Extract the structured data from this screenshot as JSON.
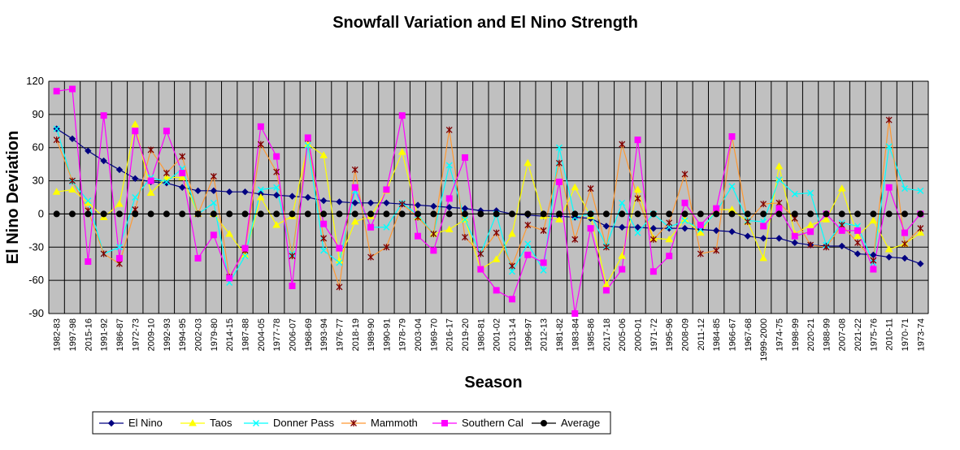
{
  "chart_data": {
    "type": "line",
    "title": "Snowfall Variation and El Nino Strength",
    "xlabel": "Season",
    "ylabel": "El Nino Deviation",
    "ylim": [
      -90,
      120
    ],
    "yticks": [
      -90,
      -60,
      -30,
      0,
      30,
      60,
      90,
      120
    ],
    "grid": true,
    "legend_position": "bottom-left",
    "plot_background": "#c0c0c0",
    "categories": [
      "1982-83",
      "1997-98",
      "2015-16",
      "1991-92",
      "1986-87",
      "1972-73",
      "2009-10",
      "1992-93",
      "1994-95",
      "2002-03",
      "1979-80",
      "2014-15",
      "1987-88",
      "2004-05",
      "1977-78",
      "2006-07",
      "1968-69",
      "1993-94",
      "1976-77",
      "2018-19",
      "1989-90",
      "1990-91",
      "1978-79",
      "2003-04",
      "1969-70",
      "2016-17",
      "2019-20",
      "1980-81",
      "2001-02",
      "2013-14",
      "1996-97",
      "2012-13",
      "1981-82",
      "1983-84",
      "1985-86",
      "2017-18",
      "2005-06",
      "2000-01",
      "1971-72",
      "1995-96",
      "2008-09",
      "2011-12",
      "1984-85",
      "1966-67",
      "1967-68",
      "1999-2000",
      "1974-75",
      "1998-99",
      "2020-21",
      "1988-99",
      "2007-08",
      "2021-22",
      "1975-76",
      "2010-11",
      "1970-71",
      "1973-74"
    ],
    "series": [
      {
        "name": "El Nino",
        "color": "#000080",
        "marker": "diamond",
        "values": [
          77,
          68,
          57,
          48,
          40,
          32,
          29,
          28,
          24,
          21,
          21,
          20,
          20,
          18,
          17,
          16,
          15,
          12,
          11,
          10,
          10,
          10,
          9,
          8,
          7,
          6,
          5,
          3,
          3,
          0,
          -1,
          -2,
          -2,
          -3,
          -4,
          -11,
          -12,
          -12,
          -13,
          -13,
          -13,
          -14,
          -15,
          -16,
          -20,
          -22,
          -22,
          -26,
          -28,
          -29,
          -29,
          -36,
          -37,
          -39,
          -40,
          -45
        ]
      },
      {
        "name": "Taos",
        "color": "#ffff00",
        "marker": "triangle",
        "values": [
          20,
          22,
          10,
          -3,
          9,
          81,
          19,
          33,
          33,
          0,
          0,
          -18,
          -37,
          15,
          -10,
          -2,
          63,
          53,
          -42,
          -7,
          -2,
          21,
          56,
          -3,
          -18,
          -14,
          -5,
          -50,
          -41,
          -18,
          46,
          -2,
          -5,
          24,
          -2,
          -64,
          -38,
          22,
          -22,
          -23,
          -5,
          -17,
          4,
          4,
          -7,
          -40,
          43,
          -18,
          -10,
          -5,
          23,
          -20,
          -6,
          -32,
          -27,
          -17
        ]
      },
      {
        "name": "Donner Pass",
        "color": "#00ffff",
        "marker": "x",
        "values": [
          77,
          29,
          12,
          -36,
          -30,
          15,
          33,
          29,
          41,
          0,
          10,
          -62,
          -38,
          22,
          24,
          -36,
          62,
          -33,
          -44,
          21,
          -12,
          -12,
          10,
          -1,
          -18,
          44,
          -5,
          -36,
          0,
          -52,
          -27,
          -51,
          60,
          -3,
          0,
          -29,
          10,
          -17,
          0,
          -12,
          -6,
          -14,
          2,
          25,
          -6,
          -7,
          31,
          18,
          19,
          -28,
          -8,
          -11,
          -44,
          61,
          23,
          21
        ]
      },
      {
        "name": "Mammoth",
        "color": "#800000",
        "lineColor": "#ff9933",
        "marker": "star",
        "values": [
          67,
          30,
          3,
          -36,
          -45,
          4,
          58,
          37,
          52,
          0,
          34,
          -57,
          -33,
          63,
          38,
          -38,
          68,
          -22,
          -66,
          40,
          -39,
          -30,
          9,
          -3,
          -18,
          76,
          -21,
          -36,
          -17,
          -47,
          -10,
          -15,
          46,
          -23,
          23,
          -30,
          63,
          14,
          -23,
          -8,
          36,
          -36,
          -33,
          70,
          -7,
          9,
          10,
          -4,
          -28,
          -30,
          -10,
          -26,
          -42,
          85,
          -27,
          -13
        ]
      },
      {
        "name": "Southern Cal",
        "color": "#ff00ff",
        "marker": "square",
        "values": [
          111,
          113,
          -43,
          89,
          -40,
          75,
          30,
          75,
          37,
          -40,
          -19,
          -58,
          -31,
          79,
          52,
          -65,
          69,
          -9,
          -31,
          24,
          -12,
          22,
          89,
          -20,
          -33,
          14,
          51,
          -50,
          -69,
          -77,
          -37,
          -44,
          29,
          -90,
          -13,
          -69,
          -50,
          67,
          -52,
          -38,
          10,
          -10,
          5,
          70,
          null,
          -11,
          5,
          -20,
          -16,
          0,
          -15,
          -15,
          -50,
          24,
          -17,
          0
        ]
      },
      {
        "name": "Average",
        "color": "#000000",
        "marker": "circle",
        "values": [
          0,
          0,
          0,
          0,
          0,
          0,
          0,
          0,
          0,
          0,
          0,
          0,
          0,
          0,
          0,
          0,
          0,
          0,
          0,
          0,
          0,
          0,
          0,
          0,
          0,
          0,
          0,
          0,
          0,
          0,
          0,
          0,
          0,
          0,
          0,
          0,
          0,
          0,
          0,
          0,
          0,
          0,
          0,
          0,
          0,
          0,
          0,
          0,
          0,
          0,
          0,
          0,
          0,
          0,
          0,
          0
        ]
      }
    ]
  }
}
